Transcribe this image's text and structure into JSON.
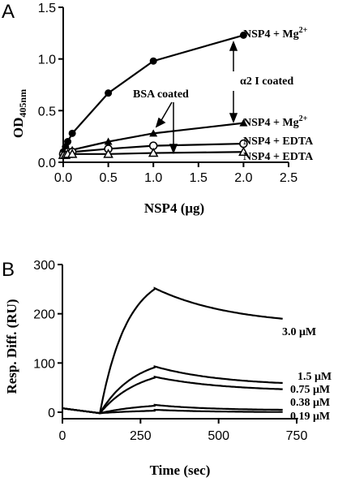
{
  "panels": {
    "a_letter": "A",
    "b_letter": "B"
  },
  "chart_data": [
    {
      "type": "line",
      "xlabel": "NSP4 (μg)",
      "ylabel_main": "OD",
      "ylabel_sub": "405nm",
      "xlim": [
        0,
        2.5
      ],
      "ylim": [
        0,
        1.5
      ],
      "xticks": [
        "0.0",
        "0.5",
        "1.0",
        "1.5",
        "2.0",
        "2.5"
      ],
      "yticks": [
        "0.0",
        "0.5",
        "1.0",
        "1.5"
      ],
      "grid": false,
      "series": [
        {
          "name": "NSP4 + Mg2+",
          "marker": "filled-circle",
          "x": [
            0,
            0.025,
            0.05,
            0.1,
            0.5,
            1.0,
            2.0
          ],
          "y": [
            0.1,
            0.15,
            0.2,
            0.28,
            0.67,
            0.98,
            1.23
          ]
        },
        {
          "name": "NSP4 + Mg2+",
          "marker": "filled-triangle",
          "x": [
            0,
            0.025,
            0.05,
            0.1,
            0.5,
            1.0,
            2.0
          ],
          "y": [
            0.07,
            0.09,
            0.1,
            0.12,
            0.2,
            0.28,
            0.38
          ]
        },
        {
          "name": "NSP4 + EDTA",
          "marker": "open-circle",
          "x": [
            0,
            0.025,
            0.05,
            0.1,
            0.5,
            1.0,
            2.0
          ],
          "y": [
            0.08,
            0.09,
            0.1,
            0.1,
            0.13,
            0.16,
            0.18
          ]
        },
        {
          "name": "NSP4 + EDTA",
          "marker": "open-triangle",
          "x": [
            0,
            0.025,
            0.05,
            0.1,
            0.5,
            1.0,
            2.0
          ],
          "y": [
            0.07,
            0.07,
            0.08,
            0.08,
            0.08,
            0.09,
            0.1
          ]
        }
      ],
      "labels": {
        "s1_main": "NSP4 + Mg",
        "s1_sup": "2+",
        "s2_main": "NSP4 + Mg",
        "s2_sup": "2+",
        "s3": "NSP4 + EDTA",
        "s4": "NSP4 + EDTA"
      },
      "annotations": {
        "bsa": "BSA coated",
        "a2_greek": "α2",
        "a2_rest": " I coated"
      }
    },
    {
      "type": "line",
      "xlabel": "Time (sec)",
      "ylabel": "Resp. Diff. (RU)",
      "xlim": [
        0,
        750
      ],
      "ylim": [
        -10,
        300
      ],
      "xticks": [
        "0",
        "250",
        "500",
        "750"
      ],
      "yticks": [
        "0",
        "100",
        "200",
        "300"
      ],
      "grid": false,
      "injection_start": 120,
      "injection_end": 295,
      "series": [
        {
          "name": "3.0 μM",
          "peak": 252,
          "end": 175,
          "kon": 0.0115,
          "koff": 0.004
        },
        {
          "name": "1.5 μM",
          "peak": 93,
          "end": 53,
          "kon": 0.009,
          "koff": 0.0045
        },
        {
          "name": "0.75 μM",
          "peak": 72,
          "end": 42,
          "kon": 0.008,
          "koff": 0.0045
        },
        {
          "name": "0.38 μM",
          "peak": 15,
          "end": 4,
          "kon": 0.007,
          "koff": 0.006
        },
        {
          "name": "0.19 μM",
          "peak": 5,
          "end": 0,
          "kon": 0.006,
          "koff": 0.006
        }
      ],
      "labels": [
        "3.0 μM",
        "1.5 μM",
        "0.75 μM",
        "0.38 μM",
        "0.19 μM"
      ]
    }
  ]
}
